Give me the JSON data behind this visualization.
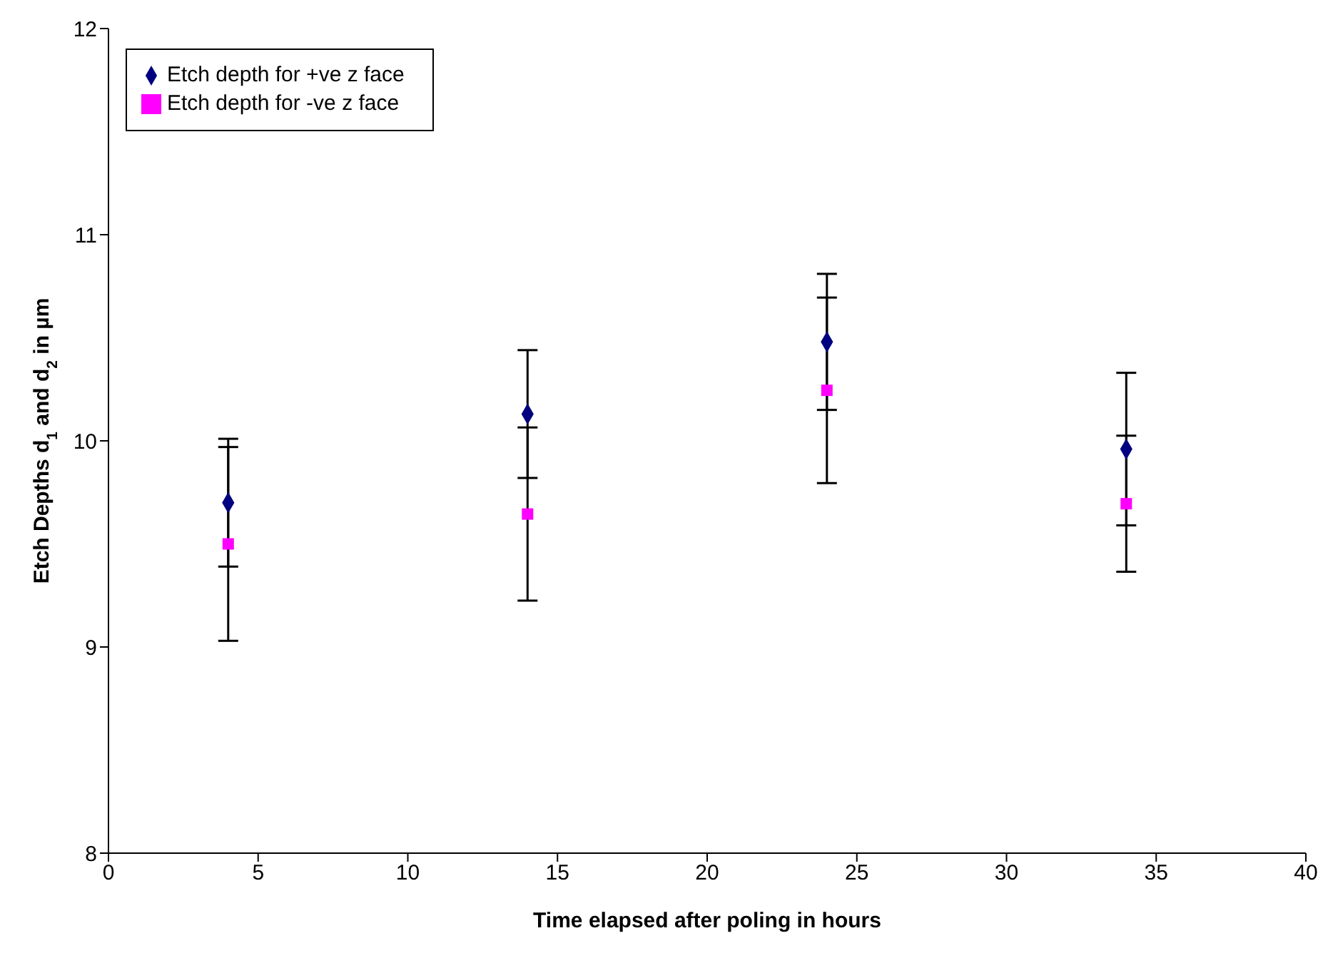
{
  "chart_data": {
    "type": "scatter",
    "xlabel": "Time elapsed after poling in hours",
    "ylabel": "Etch Depths d$_{1}$ and d$_{2}$ in µm",
    "x": [
      4,
      14,
      24,
      34
    ],
    "series": [
      {
        "name": "Etch depth for +ve z face",
        "color": "#000080",
        "marker": "diamond",
        "values": [
          9.7,
          10.13,
          10.48,
          9.96
        ],
        "errors": [
          0.31,
          0.31,
          0.33,
          0.37
        ]
      },
      {
        "name": "Etch depth for -ve z face",
        "color": "#ff00ff",
        "marker": "square",
        "values": [
          9.5,
          9.645,
          10.245,
          9.695
        ],
        "errors": [
          0.47,
          0.42,
          0.45,
          0.33
        ]
      }
    ],
    "xlim": [
      0,
      40
    ],
    "xticks": [
      0,
      5,
      10,
      15,
      20,
      25,
      30,
      35,
      40
    ],
    "ylim": [
      8,
      12
    ],
    "yticks": [
      8,
      9,
      10,
      11,
      12
    ],
    "grid": false,
    "legend": "top left"
  }
}
